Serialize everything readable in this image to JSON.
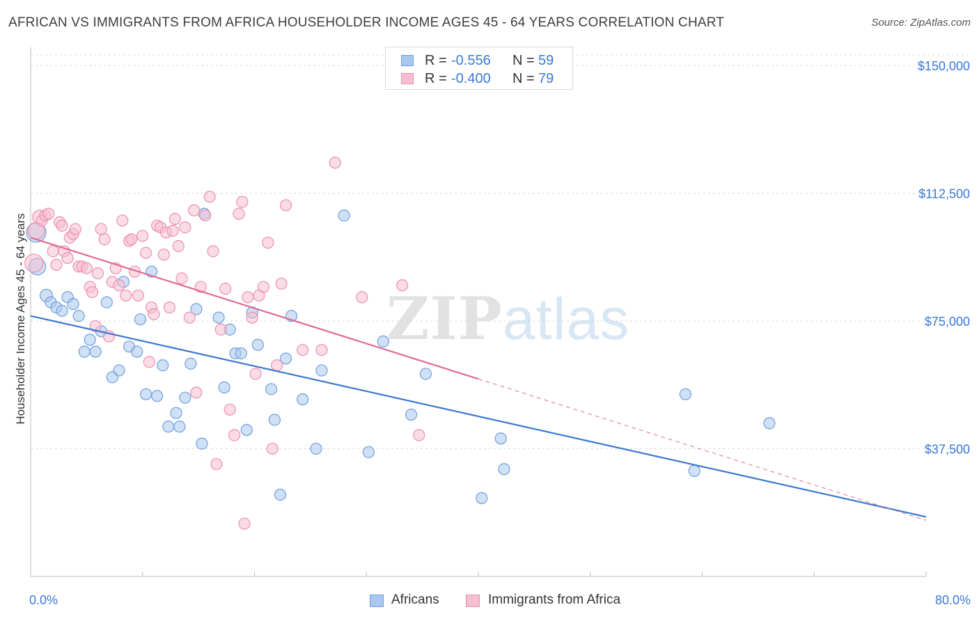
{
  "title": "AFRICAN VS IMMIGRANTS FROM AFRICA HOUSEHOLDER INCOME AGES 45 - 64 YEARS CORRELATION CHART",
  "source": "Source: ZipAtlas.com",
  "watermark": {
    "zip": "ZIP",
    "atlas": "atlas"
  },
  "stats": {
    "blue": {
      "r_label": "R =",
      "r_value": "-0.556",
      "n_label": "N =",
      "n_value": "59"
    },
    "pink": {
      "r_label": "R =",
      "r_value": "-0.400",
      "n_label": "N =",
      "n_value": "79"
    }
  },
  "legend": {
    "blue_label": "Africans",
    "pink_label": "Immigrants from Africa"
  },
  "colors": {
    "blue_fill": "#a9c8ef",
    "blue_stroke": "#6e9fdc",
    "blue_line": "#3a77d0",
    "pink_fill": "#f6bfd0",
    "pink_stroke": "#ec8fae",
    "pink_line": "#e06b93",
    "axis_text": "#3b78d4",
    "grid": "#d8d8d8"
  },
  "chart_data": {
    "type": "scatter",
    "title": "AFRICAN VS IMMIGRANTS FROM AFRICA HOUSEHOLDER INCOME AGES 45 - 64 YEARS CORRELATION CHART",
    "xlabel": "",
    "ylabel": "Householder Income Ages 45 - 64 years",
    "xlim": [
      0,
      80
    ],
    "ylim": [
      0,
      157000
    ],
    "x_tick_labels": [
      "0.0%",
      "80.0%"
    ],
    "y_ticks": [
      37500,
      75000,
      112500,
      150000
    ],
    "y_tick_labels": [
      "$37,500",
      "$75,000",
      "$112,500",
      "$150,000"
    ],
    "grid": true,
    "legend_placement": "bottom-center",
    "series": [
      {
        "name": "Africans",
        "r": -0.556,
        "n": 59,
        "trend": {
          "x": [
            0,
            80
          ],
          "y": [
            76500,
            17500
          ]
        },
        "points": [
          [
            0.5,
            101000,
            14
          ],
          [
            0.6,
            91000,
            12
          ],
          [
            1.4,
            82500,
            9
          ],
          [
            1.8,
            80500,
            8
          ],
          [
            2.3,
            79000,
            8
          ],
          [
            2.8,
            78000,
            8
          ],
          [
            3.3,
            82000,
            8
          ],
          [
            3.8,
            80000,
            8
          ],
          [
            4.3,
            76500,
            8
          ],
          [
            4.8,
            66000,
            8
          ],
          [
            5.3,
            69500,
            8
          ],
          [
            5.8,
            66000,
            8
          ],
          [
            6.3,
            72000,
            8
          ],
          [
            6.8,
            80500,
            8
          ],
          [
            7.3,
            58500,
            8
          ],
          [
            7.9,
            60500,
            8
          ],
          [
            8.3,
            86500,
            8
          ],
          [
            8.8,
            67500,
            8
          ],
          [
            9.5,
            66000,
            8
          ],
          [
            9.8,
            75500,
            8
          ],
          [
            10.3,
            53500,
            8
          ],
          [
            10.8,
            89500,
            8
          ],
          [
            11.3,
            53000,
            8
          ],
          [
            11.8,
            62000,
            8
          ],
          [
            12.3,
            44000,
            8
          ],
          [
            13.0,
            48000,
            8
          ],
          [
            13.3,
            44000,
            8
          ],
          [
            13.8,
            52500,
            8
          ],
          [
            14.3,
            62500,
            8
          ],
          [
            14.8,
            78500,
            8
          ],
          [
            15.3,
            39000,
            8
          ],
          [
            15.5,
            106500,
            8
          ],
          [
            16.8,
            76000,
            8
          ],
          [
            17.3,
            55500,
            8
          ],
          [
            17.8,
            72500,
            8
          ],
          [
            18.3,
            65500,
            8
          ],
          [
            18.8,
            65500,
            8
          ],
          [
            19.3,
            43000,
            8
          ],
          [
            19.8,
            77500,
            8
          ],
          [
            20.3,
            68000,
            8
          ],
          [
            21.5,
            55000,
            8
          ],
          [
            21.8,
            46000,
            8
          ],
          [
            22.3,
            24000,
            8
          ],
          [
            22.8,
            64000,
            8
          ],
          [
            23.3,
            76500,
            8
          ],
          [
            24.3,
            52000,
            8
          ],
          [
            25.5,
            37500,
            8
          ],
          [
            26.0,
            60500,
            8
          ],
          [
            28.0,
            106000,
            8
          ],
          [
            30.2,
            36500,
            8
          ],
          [
            31.5,
            69000,
            8
          ],
          [
            34.0,
            47500,
            8
          ],
          [
            35.3,
            59500,
            8
          ],
          [
            40.3,
            23000,
            8
          ],
          [
            42.0,
            40500,
            8
          ],
          [
            42.3,
            31500,
            8
          ],
          [
            58.5,
            53500,
            8
          ],
          [
            59.3,
            31000,
            8
          ],
          [
            66.0,
            45000,
            8
          ]
        ]
      },
      {
        "name": "Immigrants from Africa",
        "r": -0.4,
        "n": 79,
        "trend": {
          "x": [
            0,
            40
          ],
          "y": [
            99500,
            58000
          ]
        },
        "trend_dashed": {
          "x": [
            40,
            80
          ],
          "y": [
            58000,
            16500
          ]
        },
        "points": [
          [
            0.3,
            92000,
            13
          ],
          [
            0.5,
            101500,
            12
          ],
          [
            0.8,
            105500,
            10
          ],
          [
            1.0,
            104500,
            8
          ],
          [
            1.3,
            106000,
            8
          ],
          [
            1.6,
            106500,
            8
          ],
          [
            2.0,
            95500,
            8
          ],
          [
            2.3,
            91500,
            8
          ],
          [
            2.6,
            104000,
            8
          ],
          [
            2.8,
            103000,
            8
          ],
          [
            3.0,
            95500,
            8
          ],
          [
            3.3,
            93500,
            8
          ],
          [
            3.5,
            99500,
            8
          ],
          [
            3.8,
            100500,
            8
          ],
          [
            4.0,
            102000,
            8
          ],
          [
            4.3,
            91000,
            8
          ],
          [
            4.6,
            91000,
            8
          ],
          [
            5.0,
            90500,
            8
          ],
          [
            5.3,
            85000,
            8
          ],
          [
            5.5,
            83500,
            8
          ],
          [
            5.8,
            73500,
            8
          ],
          [
            6.0,
            89000,
            8
          ],
          [
            6.3,
            102000,
            8
          ],
          [
            6.6,
            99000,
            8
          ],
          [
            7.0,
            70500,
            8
          ],
          [
            7.3,
            86500,
            8
          ],
          [
            7.6,
            90500,
            8
          ],
          [
            7.9,
            85500,
            8
          ],
          [
            8.2,
            104500,
            8
          ],
          [
            8.5,
            82500,
            8
          ],
          [
            8.8,
            98500,
            8
          ],
          [
            9.0,
            99000,
            8
          ],
          [
            9.3,
            89500,
            8
          ],
          [
            9.6,
            82500,
            8
          ],
          [
            10.0,
            100000,
            8
          ],
          [
            10.3,
            95000,
            8
          ],
          [
            10.6,
            63000,
            8
          ],
          [
            10.8,
            79000,
            8
          ],
          [
            11.0,
            77000,
            8
          ],
          [
            11.3,
            103000,
            8
          ],
          [
            11.6,
            102500,
            8
          ],
          [
            11.9,
            94500,
            8
          ],
          [
            12.1,
            101000,
            8
          ],
          [
            12.4,
            79000,
            8
          ],
          [
            12.7,
            101500,
            8
          ],
          [
            12.9,
            105000,
            8
          ],
          [
            13.2,
            97000,
            8
          ],
          [
            13.5,
            87500,
            8
          ],
          [
            13.8,
            102500,
            8
          ],
          [
            14.2,
            76000,
            8
          ],
          [
            14.6,
            107500,
            8
          ],
          [
            14.8,
            54000,
            8
          ],
          [
            15.2,
            85000,
            8
          ],
          [
            15.6,
            106000,
            8
          ],
          [
            16.0,
            111500,
            8
          ],
          [
            16.3,
            95500,
            8
          ],
          [
            16.6,
            33000,
            8
          ],
          [
            17.0,
            72500,
            8
          ],
          [
            17.4,
            84500,
            8
          ],
          [
            17.8,
            49000,
            8
          ],
          [
            18.2,
            41500,
            8
          ],
          [
            18.6,
            106500,
            8
          ],
          [
            18.9,
            110000,
            8
          ],
          [
            19.1,
            15500,
            8
          ],
          [
            19.4,
            82000,
            8
          ],
          [
            19.8,
            76000,
            8
          ],
          [
            20.1,
            59500,
            8
          ],
          [
            20.4,
            82500,
            8
          ],
          [
            20.8,
            85000,
            8
          ],
          [
            21.2,
            98000,
            8
          ],
          [
            21.6,
            37500,
            8
          ],
          [
            22.0,
            62000,
            8
          ],
          [
            22.4,
            86000,
            8
          ],
          [
            22.8,
            109000,
            8
          ],
          [
            24.3,
            66500,
            8
          ],
          [
            26.0,
            66500,
            8
          ],
          [
            27.2,
            121500,
            8
          ],
          [
            29.6,
            82000,
            8
          ],
          [
            33.2,
            85500,
            8
          ],
          [
            34.7,
            41500,
            8
          ]
        ]
      }
    ]
  }
}
